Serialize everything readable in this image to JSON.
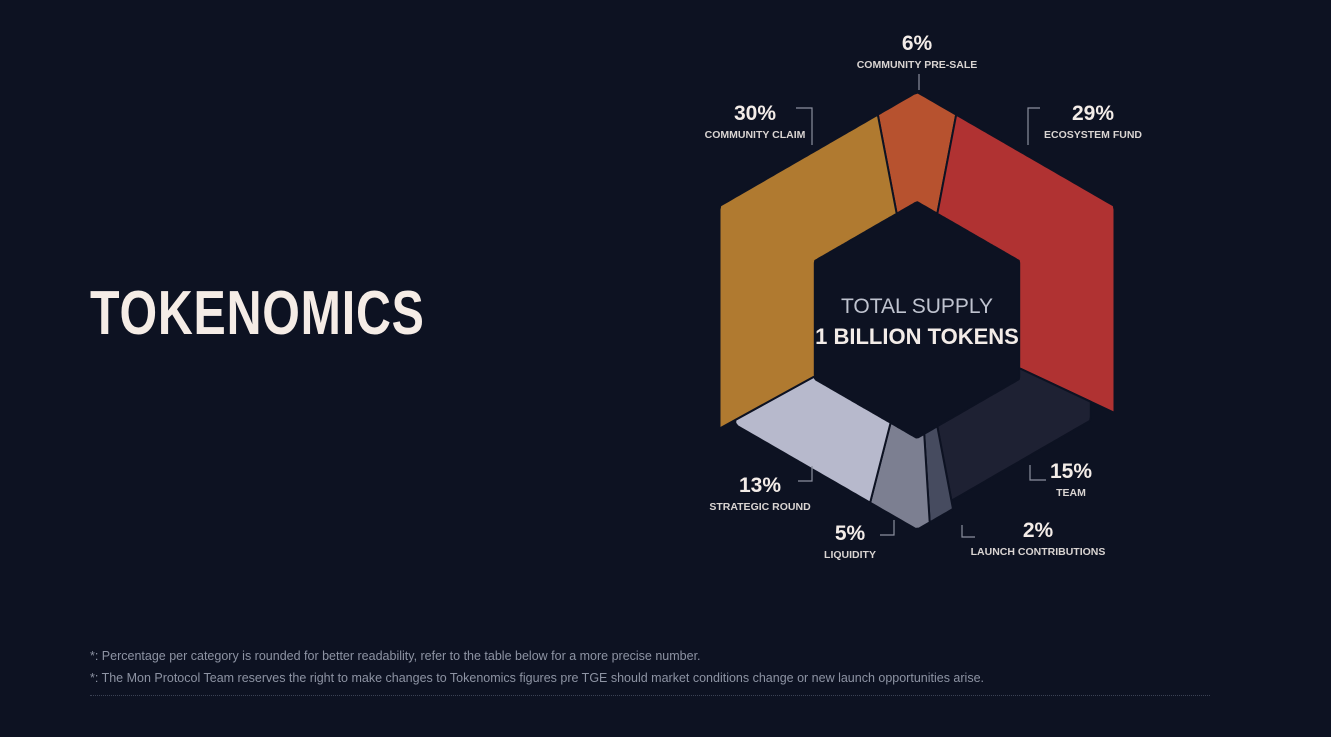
{
  "page": {
    "title": "TOKENOMICS",
    "footnotes": [
      "*: Percentage per category is rounded for better readability, refer to the table below for a more precise number.",
      "*: The Mon Protocol Team reserves the right to make changes to Tokenomics figures pre TGE should market conditions change or new launch opportunities arise."
    ]
  },
  "chart_data": {
    "type": "pie",
    "center_text": [
      "TOTAL SUPPLY",
      "1 BILLION TOKENS"
    ],
    "series": [
      {
        "label": "COMMUNITY PRE-SALE",
        "value": 6,
        "display": "6%",
        "color": "#b7522f"
      },
      {
        "label": "ECOSYSTEM FUND",
        "value": 29,
        "display": "29%",
        "color": "#b03232"
      },
      {
        "label": "TEAM",
        "value": 15,
        "display": "15%",
        "color": "#1e2133"
      },
      {
        "label": "LAUNCH CONTRIBUTIONS",
        "value": 2,
        "display": "2%",
        "color": "#464b5f"
      },
      {
        "label": "LIQUIDITY",
        "value": 5,
        "display": "5%",
        "color": "#7c7f91"
      },
      {
        "label": "STRATEGIC ROUND",
        "value": 13,
        "display": "13%",
        "color": "#b7b9cc"
      },
      {
        "label": "COMMUNITY CLAIM",
        "value": 30,
        "display": "30%",
        "color": "#b07a30"
      }
    ]
  }
}
